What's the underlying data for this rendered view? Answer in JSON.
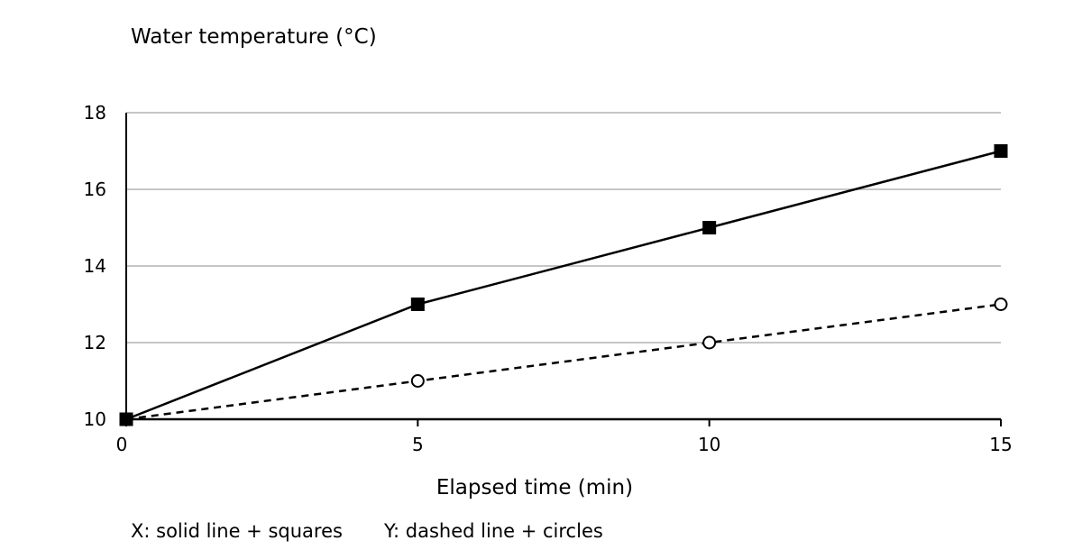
{
  "chart_data": {
    "type": "line",
    "title": "",
    "xlabel": "Elapsed time (min)",
    "ylabel": "Water temperature (°C)",
    "x": [
      0,
      5,
      10,
      15
    ],
    "xlim": [
      0,
      15
    ],
    "ylim": [
      10,
      18
    ],
    "xticks": [
      "0",
      "5",
      "10",
      "15"
    ],
    "yticks": [
      "10",
      "12",
      "14",
      "16",
      "18"
    ],
    "grid": "horizontal",
    "series": [
      {
        "name": "X",
        "values": [
          10,
          13,
          15,
          17
        ],
        "line": "solid",
        "marker": "square",
        "color": "#000000"
      },
      {
        "name": "Y",
        "values": [
          10,
          11,
          12,
          13
        ],
        "line": "dashed",
        "marker": "circle",
        "color": "#000000"
      }
    ],
    "legend": {
      "placement": "bottom-left",
      "entries": [
        "X: solid line + squares",
        "Y: dashed line + circles"
      ]
    }
  }
}
